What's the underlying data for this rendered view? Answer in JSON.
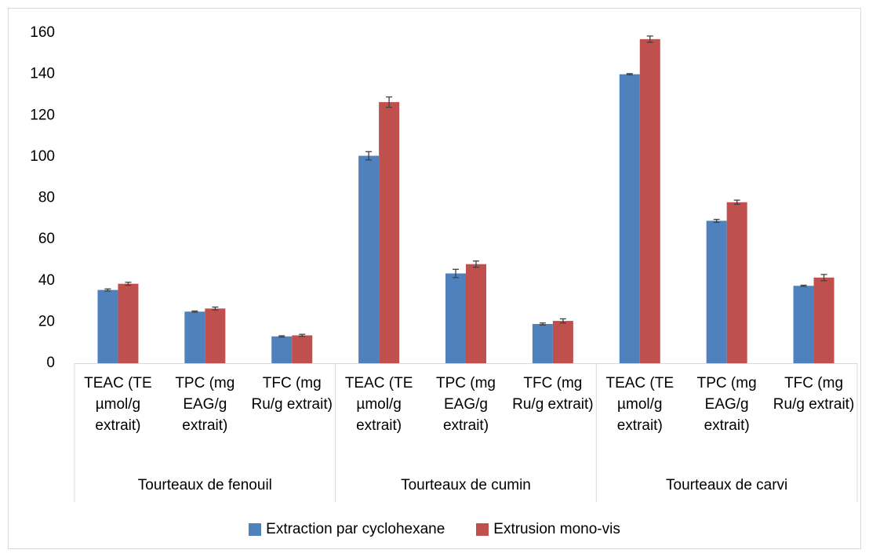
{
  "chart_data": {
    "type": "bar",
    "categories": [
      "TEAC (TE µmol/g extrait)",
      "TPC (mg EAG/g extrait)",
      "TFC (mg Ru/g extrait)",
      "TEAC (TE µmol/g extrait)",
      "TPC (mg EAG/g extrait)",
      "TFC (mg Ru/g extrait)",
      "TEAC (TE µmol/g extrait)",
      "TPC (mg EAG/g extrait)",
      "TFC (mg Ru/g extrait)"
    ],
    "groups": [
      "Tourteaux de fenouil",
      "Tourteaux de cumin",
      "Tourteaux de carvi"
    ],
    "series": [
      {
        "name": "Extraction par cyclohexane",
        "color": "#4f81bd",
        "values": [
          35.5,
          25,
          13,
          100.5,
          43.5,
          19,
          140,
          69,
          37.5
        ],
        "errors": [
          0.5,
          0.3,
          0.3,
          2,
          2,
          0.5,
          0.3,
          0.7,
          0.3
        ]
      },
      {
        "name": "Extrusion mono-vis",
        "color": "#c0504d",
        "values": [
          38.5,
          26.5,
          13.5,
          126.5,
          48,
          20.5,
          157,
          78,
          41.5
        ],
        "errors": [
          0.7,
          0.7,
          0.5,
          2.5,
          1.5,
          1,
          1.5,
          1,
          1.5
        ]
      }
    ],
    "ylim": [
      0,
      160
    ],
    "yticks": [
      0,
      20,
      40,
      60,
      80,
      100,
      120,
      140,
      160
    ],
    "grid": false,
    "legend": "bottom"
  }
}
